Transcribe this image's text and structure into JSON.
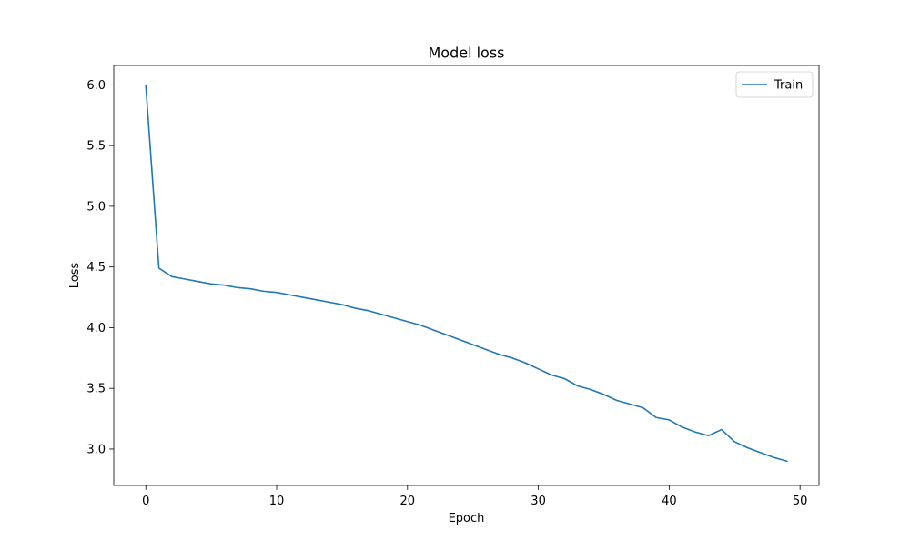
{
  "chart_data": {
    "type": "line",
    "title": "Model loss",
    "xlabel": "Epoch",
    "ylabel": "Loss",
    "xlim": [
      -2.45,
      51.45
    ],
    "ylim": [
      2.7,
      6.16
    ],
    "xticks": [
      0,
      10,
      20,
      30,
      40,
      50
    ],
    "yticks": [
      3.0,
      3.5,
      4.0,
      4.5,
      5.0,
      5.5,
      6.0
    ],
    "xtick_labels": [
      "0",
      "10",
      "20",
      "30",
      "40",
      "50"
    ],
    "ytick_labels": [
      "3.0",
      "3.5",
      "4.0",
      "4.5",
      "5.0",
      "5.5",
      "6.0"
    ],
    "grid": false,
    "legend_position": "top-right",
    "series": [
      {
        "name": "Train",
        "color": "#1f77b4",
        "x": [
          0,
          1,
          2,
          3,
          4,
          5,
          6,
          7,
          8,
          9,
          10,
          11,
          12,
          13,
          14,
          15,
          16,
          17,
          18,
          19,
          20,
          21,
          22,
          23,
          24,
          25,
          26,
          27,
          28,
          29,
          30,
          31,
          32,
          33,
          34,
          35,
          36,
          37,
          38,
          39,
          40,
          41,
          42,
          43,
          44,
          45,
          46,
          47,
          48,
          49
        ],
        "y": [
          5.99,
          4.49,
          4.42,
          4.4,
          4.38,
          4.36,
          4.35,
          4.33,
          4.32,
          4.3,
          4.29,
          4.27,
          4.25,
          4.23,
          4.21,
          4.19,
          4.16,
          4.14,
          4.11,
          4.08,
          4.05,
          4.02,
          3.98,
          3.94,
          3.9,
          3.86,
          3.82,
          3.78,
          3.75,
          3.71,
          3.66,
          3.61,
          3.58,
          3.52,
          3.49,
          3.45,
          3.4,
          3.37,
          3.34,
          3.26,
          3.24,
          3.18,
          3.14,
          3.11,
          3.16,
          3.06,
          3.01,
          2.97,
          2.93,
          2.9
        ]
      }
    ]
  }
}
